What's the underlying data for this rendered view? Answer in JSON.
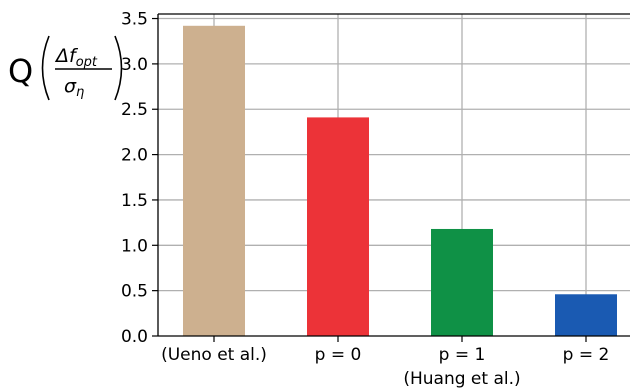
{
  "chart_data": {
    "type": "bar",
    "categories": [
      "(Ueno et al.)",
      "p = 0",
      "p = 1",
      "p = 2"
    ],
    "category_sublabels": [
      "",
      "",
      "(Huang et al.)",
      ""
    ],
    "values": [
      3.42,
      2.41,
      1.18,
      0.46
    ],
    "colors": [
      "#cdb08f",
      "#ec3338",
      "#0f9146",
      "#1a5ab2"
    ],
    "ylabel": {
      "prefix": "Q",
      "numerator": "Δf",
      "numerator_sub": "opt",
      "denominator": "σ",
      "denominator_sub": "η"
    },
    "ylim": [
      0,
      3.55
    ],
    "yticks": [
      "0.0",
      "0.5",
      "1.0",
      "1.5",
      "2.0",
      "2.5",
      "3.0",
      "3.5"
    ],
    "grid": true,
    "legend": false
  }
}
